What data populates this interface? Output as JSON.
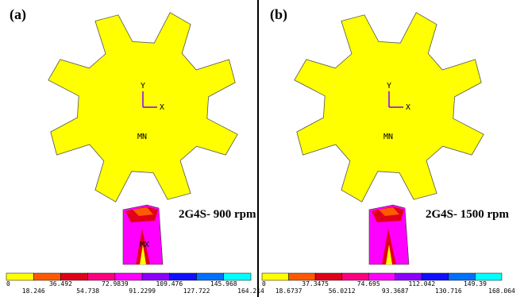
{
  "panels": [
    {
      "label": "(a)",
      "caption": "2G4S- 900 rpm",
      "axis_y": "Y",
      "axis_x": "X",
      "min_label": "MN",
      "max_label": "MX",
      "legend": {
        "colors": [
          "#ffff00",
          "#ff5a00",
          "#e0001a",
          "#ff0080",
          "#ff00ff",
          "#8a00ff",
          "#1010ff",
          "#0070ff",
          "#00ffff"
        ],
        "labels": [
          "0",
          "18.246",
          "36.492",
          "54.738",
          "72.9839",
          "91.2299",
          "109.476",
          "127.722",
          "145.968",
          "164.214"
        ]
      }
    },
    {
      "label": "(b)",
      "caption": "2G4S- 1500 rpm",
      "axis_y": "Y",
      "axis_x": "X",
      "min_label": "MN",
      "legend": {
        "colors": [
          "#ffff00",
          "#ff5a00",
          "#e0001a",
          "#ff0080",
          "#ff00ff",
          "#8a00ff",
          "#1010ff",
          "#0070ff",
          "#00ffff"
        ],
        "labels": [
          "0",
          "18.6737",
          "37.3475",
          "56.0212",
          "74.695",
          "93.3687",
          "112.042",
          "130.716",
          "149.39",
          "168.064"
        ]
      }
    }
  ]
}
